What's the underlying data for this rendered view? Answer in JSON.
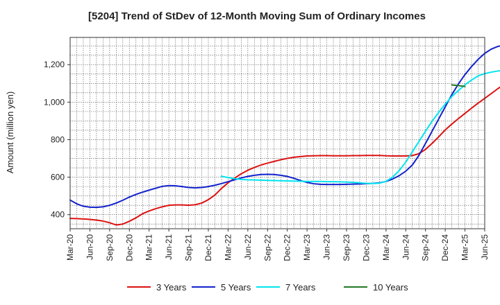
{
  "chart_data": {
    "type": "line",
    "title": "[5204]  Trend of StDev of 12-Month Moving Sum of Ordinary Incomes",
    "xlabel": "",
    "ylabel": "Amount (million yen)",
    "ylim": [
      325,
      1345
    ],
    "yticks": [
      400,
      600,
      800,
      1000,
      1200
    ],
    "ytick_labels": [
      "400",
      "600",
      "800",
      "1,000",
      "1,200"
    ],
    "xlim": [
      "Mar-20",
      "Jun-25"
    ],
    "xtick_labels": [
      "Mar-20",
      "Jun-20",
      "Sep-20",
      "Dec-20",
      "Mar-21",
      "Jun-21",
      "Sep-21",
      "Dec-21",
      "Mar-22",
      "Jun-22",
      "Sep-22",
      "Dec-22",
      "Mar-23",
      "Jun-23",
      "Sep-23",
      "Dec-23",
      "Mar-24",
      "Jun-24",
      "Sep-24",
      "Dec-24",
      "Mar-25",
      "Jun-25"
    ],
    "grid": true,
    "legend_position": "bottom",
    "series": [
      {
        "name": "3 Years",
        "color": "#dd1111",
        "start": "Mar-20",
        "values": [
          380,
          379,
          377,
          375,
          371,
          366,
          357,
          345,
          350,
          365,
          383,
          405,
          420,
          432,
          442,
          450,
          452,
          452,
          450,
          453,
          462,
          480,
          505,
          540,
          570,
          595,
          618,
          637,
          652,
          665,
          675,
          684,
          693,
          700,
          706,
          710,
          713,
          714,
          715,
          715,
          714,
          714,
          714,
          715,
          715,
          716,
          716,
          716,
          714,
          713,
          713,
          713,
          715,
          725,
          748,
          780,
          815,
          852,
          883,
          912,
          940,
          968,
          995,
          1020,
          1046,
          1072,
          1095,
          1115,
          1133,
          1145,
          1150,
          1149,
          1146,
          1143,
          1138,
          1132,
          1126
        ]
      },
      {
        "name": "5 Years",
        "color": "#1122cc",
        "start": "Mar-20",
        "values": [
          478,
          458,
          445,
          440,
          439,
          442,
          450,
          462,
          477,
          494,
          508,
          520,
          531,
          541,
          551,
          555,
          554,
          550,
          545,
          543,
          545,
          550,
          557,
          566,
          576,
          586,
          596,
          604,
          610,
          614,
          615,
          614,
          610,
          604,
          594,
          582,
          572,
          565,
          562,
          561,
          561,
          561,
          562,
          563,
          564,
          565,
          567,
          570,
          577,
          590,
          608,
          632,
          665,
          716,
          780,
          845,
          910,
          975,
          1040,
          1097,
          1147,
          1190,
          1228,
          1260,
          1283,
          1297,
          1304,
          1307,
          1308,
          1309,
          1309,
          1309
        ]
      },
      {
        "name": "7 Years",
        "color": "#00e5ee",
        "start": "Feb-22",
        "values": [
          605,
          598,
          592,
          588,
          586,
          585,
          584,
          583,
          582,
          581,
          580,
          579,
          578,
          577,
          577,
          577,
          576,
          576,
          575,
          574,
          572,
          570,
          567,
          566,
          568,
          578,
          600,
          635,
          680,
          735,
          790,
          845,
          898,
          945,
          990,
          1030,
          1062,
          1092,
          1118,
          1140,
          1152,
          1160,
          1166,
          1170,
          1174,
          1178,
          1180
        ]
      },
      {
        "name": "10 Years",
        "color": "#227722",
        "start": "Jan-25",
        "values": [
          1092,
          1088,
          1084
        ]
      }
    ]
  }
}
